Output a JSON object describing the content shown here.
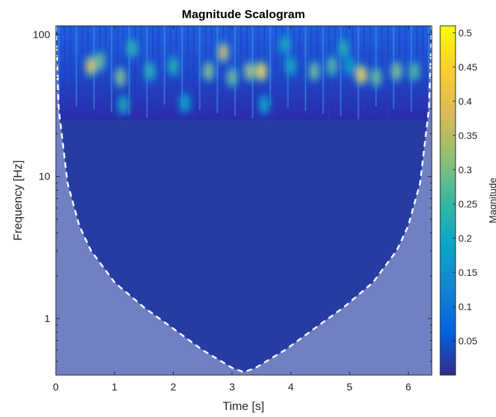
{
  "chart_data": {
    "type": "heatmap",
    "title": "Magnitude Scalogram",
    "xlabel": "Time [s]",
    "ylabel": "Frequency [Hz]",
    "xlim": [
      0,
      6.4
    ],
    "ylim": [
      0.4,
      115
    ],
    "y_scale": "log",
    "x_ticks": [
      "0",
      "1",
      "2",
      "3",
      "4",
      "5",
      "6"
    ],
    "x_tick_values": [
      0,
      1,
      2,
      3,
      4,
      5,
      6
    ],
    "y_ticks": [
      "1",
      "10",
      "100"
    ],
    "y_tick_values": [
      1,
      10,
      100
    ],
    "colorbar": {
      "label": "Magnitude",
      "range": [
        0,
        0.51
      ],
      "ticks": [
        "0.05",
        "0.1",
        "0.15",
        "0.2",
        "0.25",
        "0.3",
        "0.35",
        "0.4",
        "0.45",
        "0.5"
      ],
      "tick_values": [
        0.05,
        0.1,
        0.15,
        0.2,
        0.25,
        0.3,
        0.35,
        0.4,
        0.45,
        0.5
      ],
      "colormap": "parula"
    },
    "cone_of_influence": {
      "style": "white dashed line with shaded region outside",
      "t": [
        0,
        0.05,
        0.2,
        0.4,
        0.6,
        1.0,
        1.5,
        2.0,
        2.5,
        3.0,
        3.2,
        3.4,
        3.9,
        4.4,
        4.9,
        5.4,
        5.8,
        6.0,
        6.2,
        6.35,
        6.4
      ],
      "f": [
        115,
        30,
        9,
        4.5,
        3,
        1.8,
        1.2,
        0.85,
        0.6,
        0.45,
        0.42,
        0.45,
        0.6,
        0.85,
        1.2,
        1.8,
        3,
        4.5,
        9,
        30,
        115
      ]
    },
    "energy_band": {
      "f_low": 25,
      "f_high": 115,
      "background_magnitude": 0.02
    },
    "hotspots": [
      {
        "t": 0.6,
        "f": 60,
        "magnitude": 0.42
      },
      {
        "t": 0.75,
        "f": 65,
        "magnitude": 0.3
      },
      {
        "t": 1.1,
        "f": 50,
        "magnitude": 0.32
      },
      {
        "t": 1.15,
        "f": 32,
        "magnitude": 0.22
      },
      {
        "t": 1.6,
        "f": 55,
        "magnitude": 0.25
      },
      {
        "t": 2.0,
        "f": 60,
        "magnitude": 0.24
      },
      {
        "t": 2.2,
        "f": 33,
        "magnitude": 0.2
      },
      {
        "t": 2.6,
        "f": 55,
        "magnitude": 0.32
      },
      {
        "t": 2.85,
        "f": 75,
        "magnitude": 0.38
      },
      {
        "t": 3.0,
        "f": 50,
        "magnitude": 0.3
      },
      {
        "t": 3.3,
        "f": 55,
        "magnitude": 0.35
      },
      {
        "t": 3.5,
        "f": 55,
        "magnitude": 0.46
      },
      {
        "t": 3.55,
        "f": 32,
        "magnitude": 0.2
      },
      {
        "t": 4.0,
        "f": 60,
        "magnitude": 0.22
      },
      {
        "t": 4.4,
        "f": 55,
        "magnitude": 0.3
      },
      {
        "t": 4.7,
        "f": 60,
        "magnitude": 0.28
      },
      {
        "t": 5.0,
        "f": 60,
        "magnitude": 0.2
      },
      {
        "t": 5.2,
        "f": 52,
        "magnitude": 0.45
      },
      {
        "t": 5.45,
        "f": 50,
        "magnitude": 0.3
      },
      {
        "t": 5.8,
        "f": 55,
        "magnitude": 0.32
      },
      {
        "t": 6.1,
        "f": 55,
        "magnitude": 0.28
      },
      {
        "t": 1.3,
        "f": 80,
        "magnitude": 0.25
      },
      {
        "t": 3.9,
        "f": 85,
        "magnitude": 0.22
      },
      {
        "t": 4.9,
        "f": 80,
        "magnitude": 0.24
      }
    ]
  }
}
